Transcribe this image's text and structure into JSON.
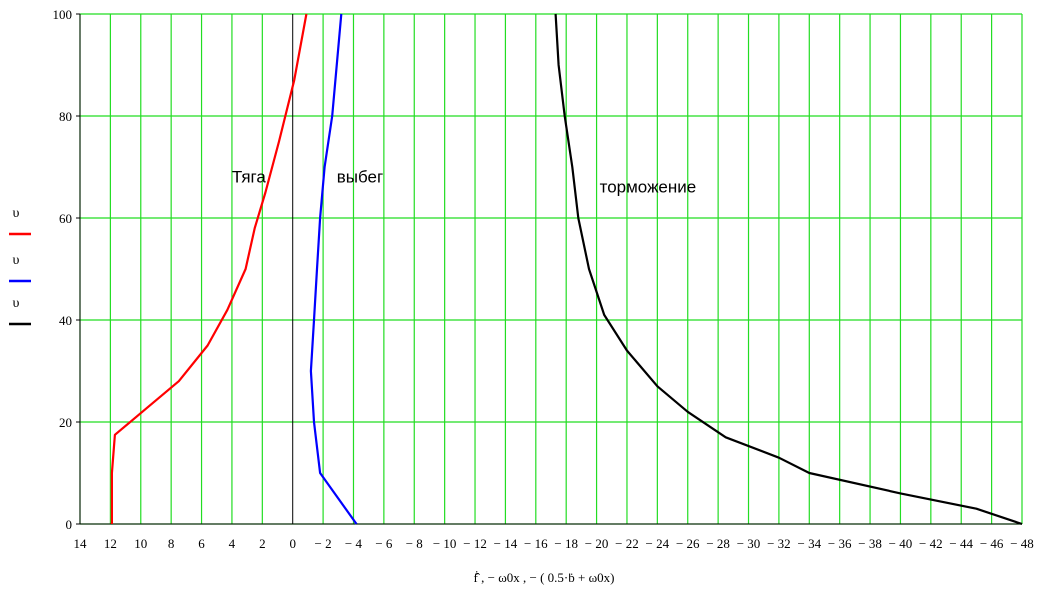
{
  "chart_data": {
    "type": "line",
    "xlabel": "ḟ̂ , − ω0x , − ( 0.5·ḃ + ω0x)",
    "ylabel": "",
    "xlim": [
      14,
      -48
    ],
    "ylim": [
      0,
      100
    ],
    "x_ticks": [
      14,
      12,
      10,
      8,
      6,
      4,
      2,
      0,
      -2,
      -4,
      -6,
      -8,
      -10,
      -12,
      -14,
      -16,
      -18,
      -20,
      -22,
      -24,
      -26,
      -28,
      -30,
      -32,
      -34,
      -36,
      -38,
      -40,
      -42,
      -44,
      -46,
      -48
    ],
    "x_tick_labels": [
      "14",
      "12",
      "10",
      "8",
      "6",
      "4",
      "2",
      "0",
      "− 2",
      "− 4",
      "− 6",
      "− 8",
      "− 10",
      "− 12",
      "− 14",
      "− 16",
      "− 18",
      "− 20",
      "− 22",
      "− 24",
      "− 26",
      "− 28",
      "− 30",
      "− 32",
      "− 34",
      "− 36",
      "− 38",
      "− 40",
      "− 42",
      "− 44",
      "− 46",
      "− 48"
    ],
    "y_ticks": [
      0,
      20,
      40,
      60,
      80,
      100
    ],
    "y_tick_labels": [
      "0",
      "20",
      "40",
      "60",
      "80",
      "100"
    ],
    "grid": true,
    "legend": {
      "position": "left",
      "entries": [
        {
          "symbol": "υ",
          "color": "#ff0000"
        },
        {
          "symbol": "υ",
          "color": "#0000ff"
        },
        {
          "symbol": "υ",
          "color": "#000000"
        }
      ]
    },
    "annotations": [
      {
        "text": "Тяга",
        "x": 4.0,
        "y": 67
      },
      {
        "text": "выбег",
        "x": -2.9,
        "y": 67
      },
      {
        "text": "торможение",
        "x": -20.2,
        "y": 65
      }
    ],
    "series": [
      {
        "color": "#ff0000",
        "x": [
          11.9,
          11.9,
          11.9,
          11.7,
          9.5,
          7.5,
          5.6,
          4.3,
          3.1,
          2.5,
          1.8,
          0.9,
          -0.1,
          -0.9
        ],
        "y": [
          0,
          5,
          10,
          17.5,
          23,
          28,
          35,
          42,
          50,
          58,
          65,
          75,
          87,
          100
        ]
      },
      {
        "color": "#0000ff",
        "x": [
          -4.2,
          -1.8,
          -1.4,
          -1.2,
          -1.4,
          -1.6,
          -1.8,
          -2.1,
          -2.6,
          -3.2
        ],
        "y": [
          0,
          10,
          20,
          30,
          40,
          50,
          60,
          70,
          80,
          100
        ]
      },
      {
        "color": "#000000",
        "x": [
          -48.0,
          -45.0,
          -40.0,
          -34.0,
          -32.0,
          -28.5,
          -26.0,
          -24.0,
          -22.0,
          -20.5,
          -19.5,
          -18.8,
          -18.4,
          -17.9,
          -17.5,
          -17.3
        ],
        "y": [
          0,
          3,
          6,
          10,
          13,
          17,
          22,
          27,
          34,
          41,
          50,
          60,
          70,
          80,
          90,
          100
        ]
      }
    ]
  }
}
